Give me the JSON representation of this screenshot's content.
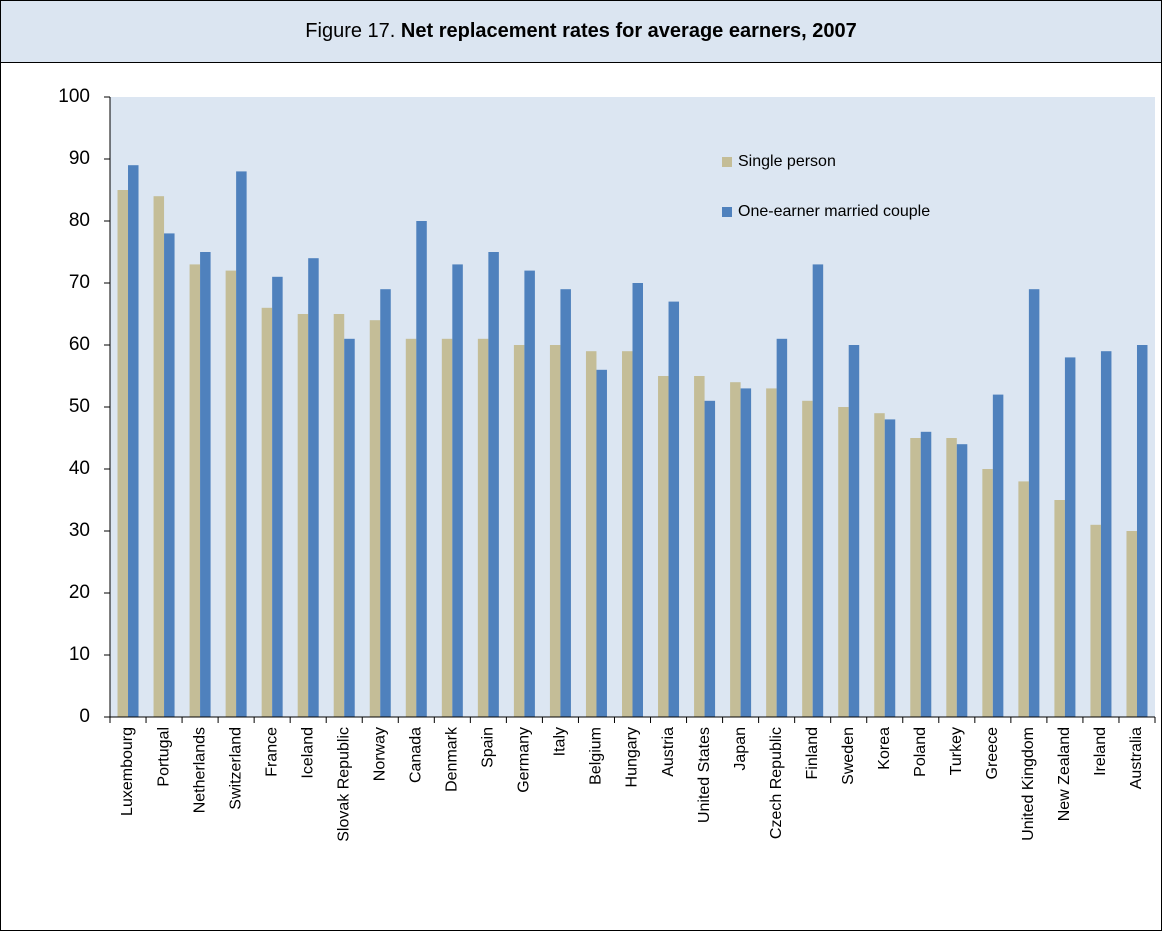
{
  "chart_data": {
    "type": "bar",
    "figure_label": "Figure 17.",
    "title": "Net replacement rates for average earners, 2007",
    "categories": [
      "Luxembourg",
      "Portugal",
      "Netherlands",
      "Switzerland",
      "France",
      "Iceland",
      "Slovak Republic",
      "Norway",
      "Canada",
      "Denmark",
      "Spain",
      "Germany",
      "Italy",
      "Belgium",
      "Hungary",
      "Austria",
      "United States",
      "Japan",
      "Czech Republic",
      "Finland",
      "Sweden",
      "Korea",
      "Poland",
      "Turkey",
      "Greece",
      "United Kingdom",
      "New Zealand",
      "Ireland",
      "Australia"
    ],
    "series": [
      {
        "name": "Single person",
        "color": "#c4bd97",
        "values": [
          85,
          84,
          73,
          72,
          66,
          65,
          65,
          64,
          61,
          61,
          61,
          60,
          60,
          59,
          59,
          55,
          55,
          54,
          53,
          51,
          50,
          49,
          45,
          45,
          40,
          38,
          35,
          31,
          30
        ]
      },
      {
        "name": "One-earner married couple",
        "color": "#4f81bd",
        "values": [
          89,
          78,
          75,
          88,
          71,
          74,
          61,
          69,
          80,
          73,
          75,
          72,
          69,
          56,
          70,
          67,
          51,
          53,
          61,
          73,
          60,
          48,
          46,
          44,
          52,
          69,
          58,
          59,
          60
        ]
      }
    ],
    "ylim": [
      0,
      100
    ],
    "yticks": [
      0,
      10,
      20,
      30,
      40,
      50,
      60,
      70,
      80,
      90,
      100
    ],
    "grid": false,
    "legend": "top-right",
    "background": "#dce6f2"
  }
}
